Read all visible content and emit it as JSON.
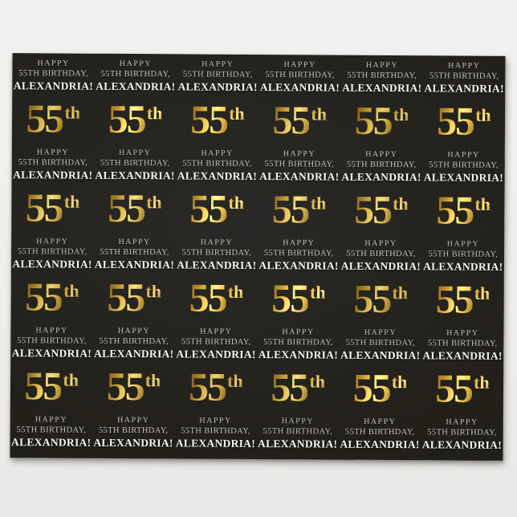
{
  "page": {
    "background_color": "#efeeec"
  },
  "paper": {
    "color": "#232120",
    "rows": 5,
    "columns": 6
  },
  "pattern": {
    "tile": {
      "line1": "HAPPY",
      "line2": "55TH BIRTHDAY,",
      "name": "ALEXANDRIA!",
      "number": "55",
      "ordinal": "th"
    }
  },
  "colors": {
    "text_soft": "#c6c5c3",
    "text_bright": "#f6f5f3",
    "gold_dark": "#7a5c1d",
    "gold_mid": "#a8832c",
    "gold_bright": "#e6c258",
    "gold_highlight": "#f9e386",
    "gold_deep": "#8a671f",
    "paper_color": "#232120"
  }
}
